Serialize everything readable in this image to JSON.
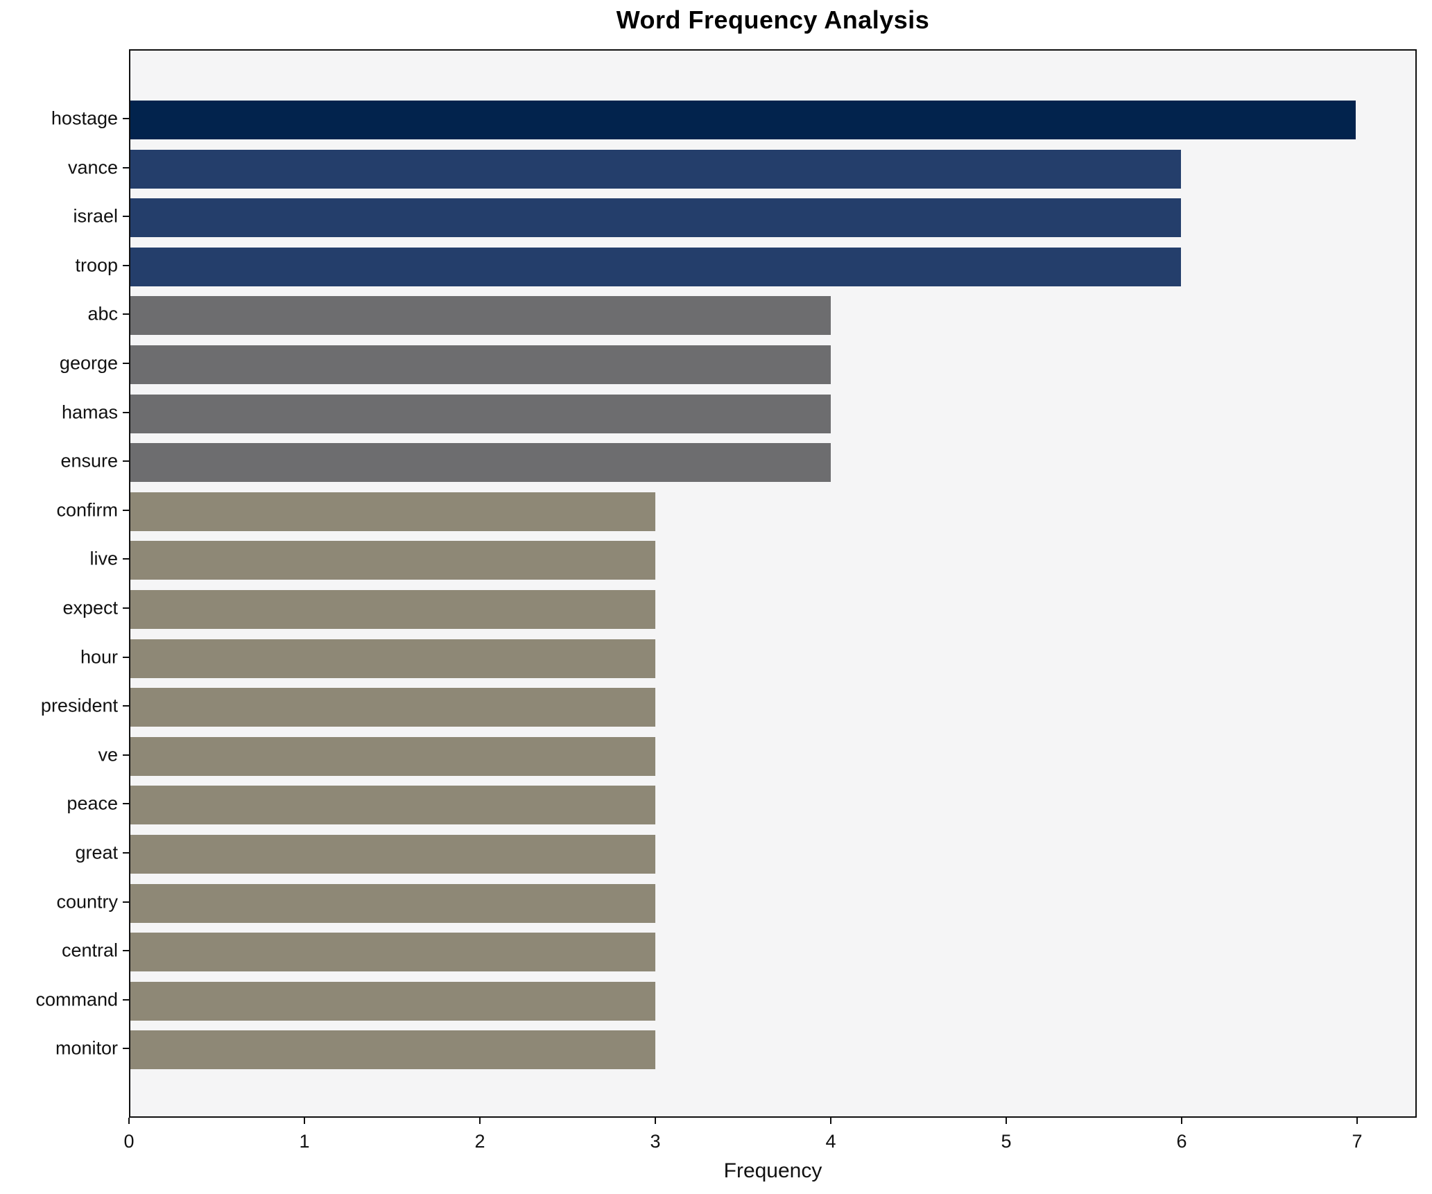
{
  "chart_data": {
    "type": "bar",
    "orientation": "horizontal",
    "title": "Word Frequency Analysis",
    "xlabel": "Frequency",
    "ylabel": "",
    "categories": [
      "hostage",
      "vance",
      "israel",
      "troop",
      "abc",
      "george",
      "hamas",
      "ensure",
      "confirm",
      "live",
      "expect",
      "hour",
      "president",
      "ve",
      "peace",
      "great",
      "country",
      "central",
      "command",
      "monitor"
    ],
    "values": [
      7,
      6,
      6,
      6,
      4,
      4,
      4,
      4,
      3,
      3,
      3,
      3,
      3,
      3,
      3,
      3,
      3,
      3,
      3,
      3
    ],
    "bar_colors": [
      "#02234d",
      "#243e6b",
      "#243e6b",
      "#243e6b",
      "#6d6d6f",
      "#6d6d6f",
      "#6d6d6f",
      "#6d6d6f",
      "#8e8876",
      "#8e8876",
      "#8e8876",
      "#8e8876",
      "#8e8876",
      "#8e8876",
      "#8e8876",
      "#8e8876",
      "#8e8876",
      "#8e8876",
      "#8e8876",
      "#8e8876"
    ],
    "xticks": [
      0,
      1,
      2,
      3,
      4,
      5,
      6,
      7
    ],
    "xlim": [
      0,
      7.34
    ],
    "grid": false,
    "legend_position": "none",
    "plot_background": "#f5f5f6",
    "figure_background": "#ffffff",
    "spine_color": "#0f0f0f"
  }
}
